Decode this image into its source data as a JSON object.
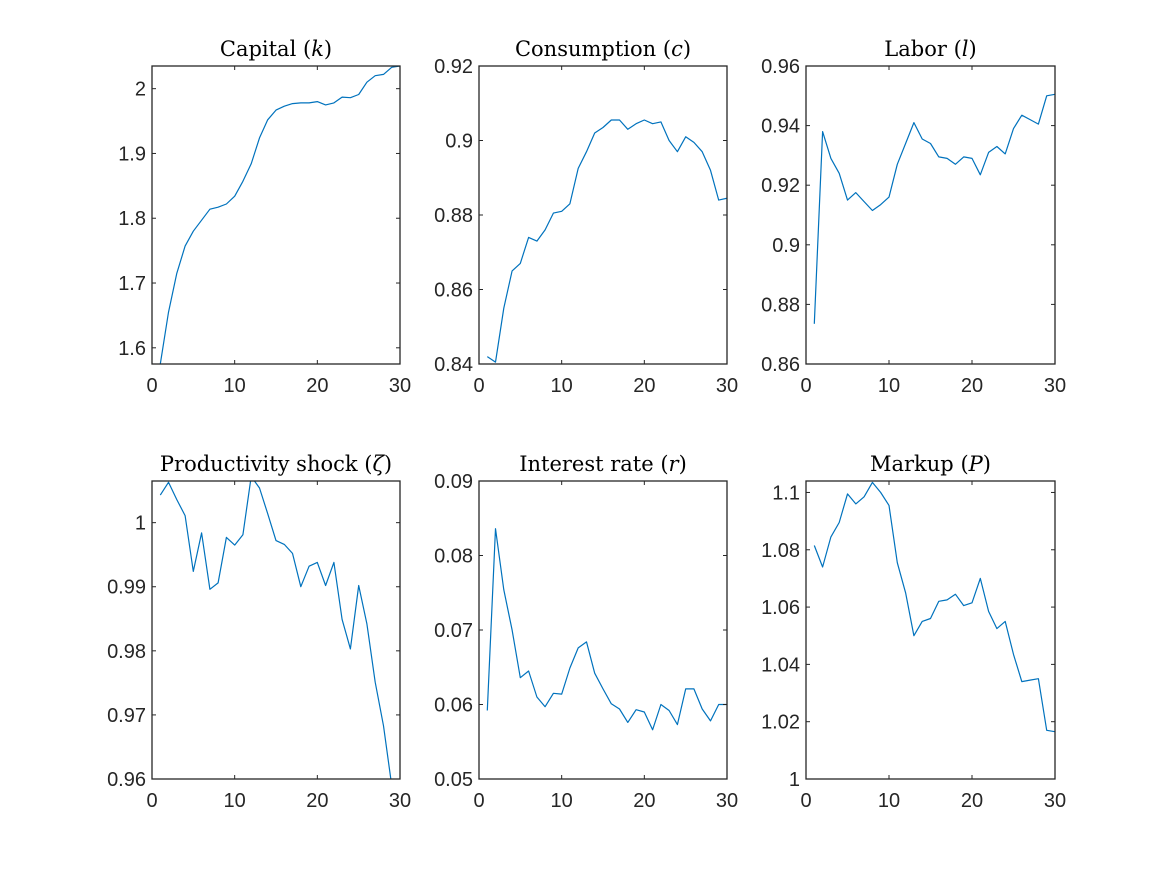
{
  "colors": {
    "series": "#0072BD",
    "axes": "#262626"
  },
  "chart_data": [
    {
      "type": "line",
      "title": "Capital (k)",
      "title_main": "Capital",
      "title_symbol": "k",
      "xlim": [
        0,
        30
      ],
      "ylim": [
        1.575,
        2.035
      ],
      "xticks": [
        0,
        10,
        20,
        30
      ],
      "yticks": [
        1.6,
        1.7,
        1.8,
        1.9,
        2
      ],
      "xtick_labels": [
        "0",
        "10",
        "20",
        "30"
      ],
      "ytick_labels": [
        "1.6",
        "1.7",
        "1.8",
        "1.9",
        "2"
      ],
      "grid": false,
      "x": [
        1,
        2,
        3,
        4,
        5,
        6,
        7,
        8,
        9,
        10,
        11,
        12,
        13,
        14,
        15,
        16,
        17,
        18,
        19,
        20,
        21,
        22,
        23,
        24,
        25,
        26,
        27,
        28,
        29,
        30
      ],
      "y": [
        1.575,
        1.655,
        1.715,
        1.757,
        1.78,
        1.797,
        1.814,
        1.817,
        1.822,
        1.834,
        1.857,
        1.884,
        1.924,
        1.952,
        1.967,
        1.973,
        1.977,
        1.978,
        1.978,
        1.98,
        1.975,
        1.978,
        1.987,
        1.986,
        1.991,
        2.01,
        2.02,
        2.022,
        2.033,
        2.035
      ]
    },
    {
      "type": "line",
      "title": "Consumption (c)",
      "title_main": "Consumption",
      "title_symbol": "c",
      "xlim": [
        0,
        30
      ],
      "ylim": [
        0.84,
        0.92
      ],
      "xticks": [
        0,
        10,
        20,
        30
      ],
      "yticks": [
        0.84,
        0.86,
        0.88,
        0.9,
        0.92
      ],
      "xtick_labels": [
        "0",
        "10",
        "20",
        "30"
      ],
      "ytick_labels": [
        "0.84",
        "0.86",
        "0.88",
        "0.9",
        "0.92"
      ],
      "grid": false,
      "x": [
        1,
        2,
        3,
        4,
        5,
        6,
        7,
        8,
        9,
        10,
        11,
        12,
        13,
        14,
        15,
        16,
        17,
        18,
        19,
        20,
        21,
        22,
        23,
        24,
        25,
        26,
        27,
        28,
        29,
        30
      ],
      "y": [
        0.842,
        0.8405,
        0.855,
        0.865,
        0.867,
        0.874,
        0.873,
        0.876,
        0.8805,
        0.881,
        0.883,
        0.8925,
        0.897,
        0.902,
        0.9035,
        0.9055,
        0.9055,
        0.903,
        0.9045,
        0.9055,
        0.9045,
        0.905,
        0.9,
        0.897,
        0.901,
        0.8995,
        0.897,
        0.892,
        0.884,
        0.8845
      ]
    },
    {
      "type": "line",
      "title": "Labor (l)",
      "title_main": "Labor",
      "title_symbol": "l",
      "xlim": [
        0,
        30
      ],
      "ylim": [
        0.86,
        0.96
      ],
      "xticks": [
        0,
        10,
        20,
        30
      ],
      "yticks": [
        0.86,
        0.88,
        0.9,
        0.92,
        0.94,
        0.96
      ],
      "xtick_labels": [
        "0",
        "10",
        "20",
        "30"
      ],
      "ytick_labels": [
        "0.86",
        "0.88",
        "0.9",
        "0.92",
        "0.94",
        "0.96"
      ],
      "grid": false,
      "x": [
        1,
        2,
        3,
        4,
        5,
        6,
        7,
        8,
        9,
        10,
        11,
        12,
        13,
        14,
        15,
        16,
        17,
        18,
        19,
        20,
        21,
        22,
        23,
        24,
        25,
        26,
        27,
        28,
        29,
        30
      ],
      "y": [
        0.8735,
        0.938,
        0.929,
        0.924,
        0.915,
        0.9175,
        0.9145,
        0.9115,
        0.9135,
        0.916,
        0.927,
        0.934,
        0.941,
        0.9355,
        0.934,
        0.9295,
        0.929,
        0.927,
        0.9295,
        0.929,
        0.9235,
        0.931,
        0.933,
        0.9305,
        0.939,
        0.9435,
        0.942,
        0.9405,
        0.95,
        0.9505
      ]
    },
    {
      "type": "line",
      "title": "Productivity shock (ζ)",
      "title_main": "Productivity shock",
      "title_symbol": "ζ",
      "xlim": [
        0,
        30
      ],
      "ylim": [
        0.96,
        1.0065
      ],
      "xticks": [
        0,
        10,
        20,
        30
      ],
      "yticks": [
        0.96,
        0.97,
        0.98,
        0.99,
        1
      ],
      "xtick_labels": [
        "0",
        "10",
        "20",
        "30"
      ],
      "ytick_labels": [
        "0.96",
        "0.97",
        "0.98",
        "0.99",
        "1"
      ],
      "grid": false,
      "x": [
        1,
        2,
        3,
        4,
        5,
        6,
        7,
        8,
        9,
        10,
        11,
        12,
        13,
        14,
        15,
        16,
        17,
        18,
        19,
        20,
        21,
        22,
        23,
        24,
        25,
        26,
        27,
        28,
        29,
        30
      ],
      "y": [
        1.0043,
        1.0063,
        1.0036,
        1.0011,
        0.9924,
        0.9984,
        0.9896,
        0.9906,
        0.9977,
        0.9965,
        0.9981,
        1.0072,
        1.0054,
        1.0014,
        0.9972,
        0.9966,
        0.9952,
        0.99,
        0.9932,
        0.9938,
        0.9902,
        0.9938,
        0.9849,
        0.9803,
        0.9902,
        0.9842,
        0.9751,
        0.9683,
        0.959,
        0.9597
      ]
    },
    {
      "type": "line",
      "title": "Interest rate (r)",
      "title_main": "Interest rate",
      "title_symbol": "r",
      "xlim": [
        0,
        30
      ],
      "ylim": [
        0.05,
        0.09
      ],
      "xticks": [
        0,
        10,
        20,
        30
      ],
      "yticks": [
        0.05,
        0.06,
        0.07,
        0.08,
        0.09
      ],
      "xtick_labels": [
        "0",
        "10",
        "20",
        "30"
      ],
      "ytick_labels": [
        "0.05",
        "0.06",
        "0.07",
        "0.08",
        "0.09"
      ],
      "grid": false,
      "x": [
        1,
        2,
        3,
        4,
        5,
        6,
        7,
        8,
        9,
        10,
        11,
        12,
        13,
        14,
        15,
        16,
        17,
        18,
        19,
        20,
        21,
        22,
        23,
        24,
        25,
        26,
        27,
        28,
        29,
        30
      ],
      "y": [
        0.0592,
        0.0836,
        0.0754,
        0.07,
        0.0636,
        0.0645,
        0.061,
        0.0597,
        0.0615,
        0.0614,
        0.0649,
        0.0676,
        0.0684,
        0.0642,
        0.0621,
        0.0601,
        0.0594,
        0.0576,
        0.0593,
        0.059,
        0.0566,
        0.06,
        0.0592,
        0.0573,
        0.0621,
        0.0621,
        0.0594,
        0.0578,
        0.06,
        0.06
      ]
    },
    {
      "type": "line",
      "title": "Markup (P)",
      "title_main": "Markup",
      "title_symbol": "P",
      "xlim": [
        0,
        30
      ],
      "ylim": [
        1.0,
        1.104
      ],
      "xticks": [
        0,
        10,
        20,
        30
      ],
      "yticks": [
        1.0,
        1.02,
        1.04,
        1.06,
        1.08,
        1.1
      ],
      "xtick_labels": [
        "0",
        "10",
        "20",
        "30"
      ],
      "ytick_labels": [
        "1",
        "1.02",
        "1.04",
        "1.06",
        "1.08",
        "1.1"
      ],
      "grid": false,
      "x": [
        1,
        2,
        3,
        4,
        5,
        6,
        7,
        8,
        9,
        10,
        11,
        12,
        13,
        14,
        15,
        16,
        17,
        18,
        19,
        20,
        21,
        22,
        23,
        24,
        25,
        26,
        27,
        28,
        29,
        30
      ],
      "y": [
        1.0815,
        1.074,
        1.0845,
        1.0895,
        1.0995,
        1.096,
        1.0985,
        1.1035,
        1.1,
        1.0955,
        1.0755,
        1.065,
        1.05,
        1.055,
        1.056,
        1.062,
        1.0625,
        1.0645,
        1.0605,
        1.0615,
        1.07,
        1.0585,
        1.0525,
        1.055,
        1.0435,
        1.034,
        1.0345,
        1.035,
        1.017,
        1.0165
      ]
    }
  ]
}
